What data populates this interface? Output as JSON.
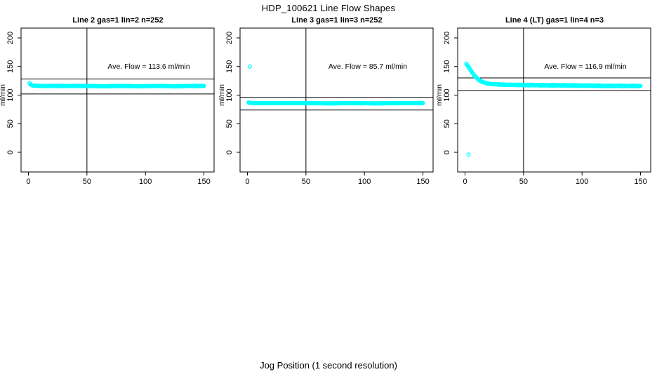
{
  "figure": {
    "title": "HDP_100621  Line Flow Shapes",
    "xlabel": "Jog Position (1 second resolution)",
    "background": "#FFFFFF",
    "point_color": "#00FFFF",
    "line_color": "#000000",
    "point_style": "open-circle"
  },
  "chart_data": [
    {
      "type": "scatter",
      "title": "Line 2 gas=1 lin=2 n=252",
      "annotation": "Ave. Flow =  113.6  ml/min",
      "ave_flow_ml_min": 113.6,
      "ylabel": "ml/min",
      "x_ticks": [
        0,
        50,
        100,
        150
      ],
      "y_ticks": [
        0,
        50,
        100,
        150,
        200
      ],
      "xlim": [
        0,
        150
      ],
      "ylim": [
        0,
        200
      ],
      "grid": false,
      "hlines": [
        128,
        102
      ],
      "vline": 50,
      "jitter": 0.5,
      "profile": [
        [
          1,
          121
        ],
        [
          2,
          118
        ],
        [
          3,
          117
        ],
        [
          5,
          116.5
        ],
        [
          10,
          116
        ],
        [
          20,
          116
        ],
        [
          35,
          116
        ],
        [
          50,
          116
        ],
        [
          65,
          115.5
        ],
        [
          80,
          116
        ],
        [
          95,
          115.5
        ],
        [
          110,
          116
        ],
        [
          125,
          115.5
        ],
        [
          140,
          116
        ],
        [
          150,
          116
        ]
      ],
      "outliers": []
    },
    {
      "type": "scatter",
      "title": "Line 3 gas=1 lin=3 n=252",
      "annotation": "Ave. Flow =  85.7  ml/min",
      "ave_flow_ml_min": 85.7,
      "ylabel": "ml/min",
      "x_ticks": [
        0,
        50,
        100,
        150
      ],
      "y_ticks": [
        0,
        50,
        100,
        150,
        200
      ],
      "xlim": [
        0,
        150
      ],
      "ylim": [
        0,
        200
      ],
      "grid": false,
      "hlines": [
        96,
        74
      ],
      "vline": 50,
      "jitter": 0.5,
      "profile": [
        [
          1,
          87
        ],
        [
          2,
          86.5
        ],
        [
          5,
          86
        ],
        [
          15,
          86
        ],
        [
          30,
          86
        ],
        [
          50,
          86
        ],
        [
          70,
          85.5
        ],
        [
          90,
          86
        ],
        [
          110,
          85.5
        ],
        [
          130,
          86
        ],
        [
          150,
          86
        ]
      ],
      "outliers": [
        [
          2,
          150
        ]
      ]
    },
    {
      "type": "scatter",
      "title": "Line 4 (LT) gas=1 lin=4 n=3",
      "annotation": "Ave. Flow =  116.9  ml/min",
      "ave_flow_ml_min": 116.9,
      "ylabel": "ml/min",
      "x_ticks": [
        0,
        50,
        100,
        150
      ],
      "y_ticks": [
        0,
        50,
        100,
        150,
        200
      ],
      "xlim": [
        0,
        150
      ],
      "ylim": [
        0,
        200
      ],
      "grid": false,
      "hlines": [
        130,
        108
      ],
      "vline": 50,
      "jitter": 0.8,
      "profile": [
        [
          1,
          155
        ],
        [
          2,
          152
        ],
        [
          3,
          149
        ],
        [
          4,
          146
        ],
        [
          5,
          143
        ],
        [
          6,
          140
        ],
        [
          7,
          137
        ],
        [
          8,
          134
        ],
        [
          9,
          132
        ],
        [
          10,
          130
        ],
        [
          11,
          128
        ],
        [
          12,
          126.5
        ],
        [
          13,
          125
        ],
        [
          14,
          124
        ],
        [
          15,
          123
        ],
        [
          17,
          121.5
        ],
        [
          19,
          120.5
        ],
        [
          22,
          119.5
        ],
        [
          25,
          119
        ],
        [
          30,
          118.5
        ],
        [
          35,
          118
        ],
        [
          40,
          118
        ],
        [
          50,
          117.5
        ],
        [
          60,
          117.5
        ],
        [
          70,
          117
        ],
        [
          80,
          117
        ],
        [
          90,
          117
        ],
        [
          100,
          116.5
        ],
        [
          110,
          116.5
        ],
        [
          120,
          116
        ],
        [
          130,
          116
        ],
        [
          140,
          116
        ],
        [
          150,
          116
        ]
      ],
      "outliers": [
        [
          3,
          -4
        ]
      ]
    }
  ]
}
